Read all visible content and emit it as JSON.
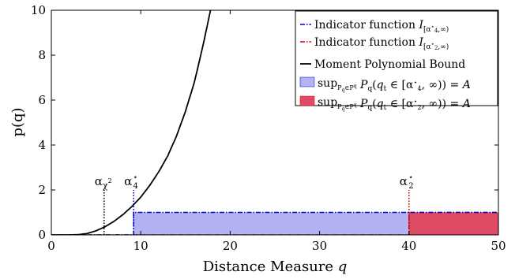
{
  "chart_data": {
    "type": "line",
    "xlabel": "Distance Measure q",
    "ylabel": "p(q)",
    "xlim": [
      0,
      50
    ],
    "ylim": [
      0,
      10
    ],
    "xticks": [
      "0",
      "10",
      "20",
      "30",
      "40",
      "50"
    ],
    "yticks": [
      "0",
      "2",
      "4",
      "6",
      "8",
      "10"
    ],
    "grid": false,
    "legend_position": "top-right",
    "legend": [
      "Indicator function I[α4⋆,∞)",
      "Indicator function I[α2⋆,∞)",
      "Moment Polynomial Bound",
      "supPq∈Pq Pq(qt ∈ [α4⋆,∞)) = A",
      "supPq∈Pq Pq(qt ∈ [α2⋆,∞)) = A"
    ],
    "series": [
      {
        "name": "Moment Polynomial Bound",
        "color": "#000000",
        "x": [
          0,
          2,
          3,
          4,
          5,
          6,
          7,
          8,
          9,
          10,
          11,
          12,
          13,
          14,
          15,
          16,
          17,
          17.8
        ],
        "y": [
          0,
          0,
          0.01,
          0.06,
          0.18,
          0.36,
          0.6,
          0.9,
          1.26,
          1.68,
          2.2,
          2.8,
          3.5,
          4.4,
          5.5,
          6.8,
          8.5,
          10
        ]
      },
      {
        "name": "Indicator function I[α4⋆,∞)",
        "color": "#0000cc",
        "x": [
          0,
          9.2,
          9.2,
          50
        ],
        "y": [
          0,
          0,
          1,
          1
        ]
      },
      {
        "name": "Indicator function I[α2⋆,∞)",
        "color": "#cc0000",
        "x": [
          0,
          40,
          40,
          50
        ],
        "y": [
          0,
          0,
          1,
          1
        ]
      }
    ],
    "areas": [
      {
        "name": "supPq∈Pq Pq(qt ∈ [α4⋆,∞)) = A",
        "color": "#b3b3f2",
        "x0": 9.2,
        "x1": 40,
        "height": 1
      },
      {
        "name": "supPq∈Pq Pq(qt ∈ [α2⋆,∞)) = A",
        "color": "#de4c64",
        "x0": 40,
        "x1": 50,
        "height": 1
      }
    ],
    "markers": [
      {
        "label": "αχ2",
        "x": 5.9,
        "y": 2,
        "color": "#000000"
      },
      {
        "label": "α4⋆",
        "x": 9.2,
        "y": 2,
        "color": "#0000cc"
      },
      {
        "label": "α2⋆",
        "x": 40,
        "y": 2,
        "color": "#cc0000"
      }
    ]
  }
}
